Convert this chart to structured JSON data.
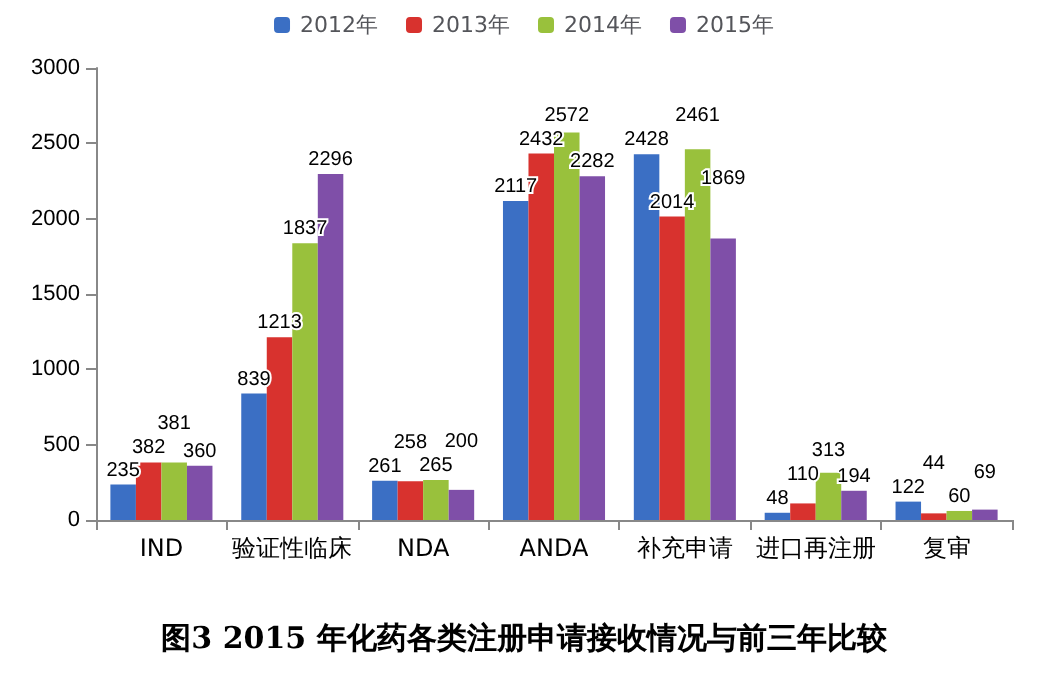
{
  "chart_data": {
    "type": "bar",
    "categories": [
      "IND",
      "验证性临床",
      "NDA",
      "ANDA",
      "补充申请",
      "进口再注册",
      "复审"
    ],
    "series": [
      {
        "name": "2012年",
        "color": "#3b6fc4",
        "values": [
          235,
          839,
          261,
          2117,
          2428,
          48,
          122
        ]
      },
      {
        "name": "2013年",
        "color": "#d8322e",
        "values": [
          382,
          1213,
          258,
          2432,
          2014,
          110,
          44
        ]
      },
      {
        "name": "2014年",
        "color": "#99c13c",
        "values": [
          381,
          1837,
          265,
          2572,
          2461,
          313,
          60
        ]
      },
      {
        "name": "2015年",
        "color": "#7f4fa8",
        "values": [
          360,
          2296,
          200,
          2282,
          1869,
          194,
          69
        ]
      }
    ],
    "ylim": [
      0,
      3000
    ],
    "yticks": [
      0,
      500,
      1000,
      1500,
      2000,
      2500,
      3000
    ],
    "grid": false,
    "legend": "top",
    "data_labels": true,
    "annotations": [
      "图3  2015 年化药各类注册申请接收情况与前三年比较"
    ]
  }
}
